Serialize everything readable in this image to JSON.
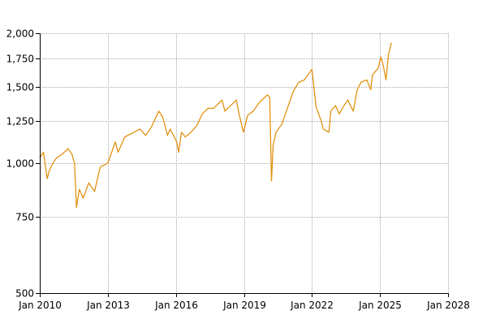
{
  "chart_data": {
    "type": "line",
    "title": "",
    "xlabel": "",
    "ylabel": "",
    "y_scale": "log",
    "ylim": [
      500,
      2000
    ],
    "xlim": [
      "2010-01-01",
      "2028-01-01"
    ],
    "grid": true,
    "legend": "none",
    "x_ticks": [
      {
        "date": "2010-01-01",
        "label": "Jan 2010"
      },
      {
        "date": "2013-01-01",
        "label": "Jan 2013"
      },
      {
        "date": "2016-01-01",
        "label": "Jan 2016"
      },
      {
        "date": "2019-01-01",
        "label": "Jan 2019"
      },
      {
        "date": "2022-01-01",
        "label": "Jan 2022"
      },
      {
        "date": "2025-01-01",
        "label": "Jan 2025"
      },
      {
        "date": "2028-01-01",
        "label": "Jan 2028"
      }
    ],
    "y_ticks": [
      {
        "value": 500,
        "label": "500"
      },
      {
        "value": 750,
        "label": "750"
      },
      {
        "value": 1000,
        "label": "1,000"
      },
      {
        "value": 1250,
        "label": "1,250"
      },
      {
        "value": 1500,
        "label": "1,500"
      },
      {
        "value": 1750,
        "label": "1,750"
      },
      {
        "value": 2000,
        "label": "2,000"
      }
    ],
    "series": [
      {
        "color": "#e08a00",
        "x": [
          "2010-01-01",
          "2010-03-01",
          "2010-05-01",
          "2010-06-01",
          "2010-08-01",
          "2010-10-01",
          "2011-01-01",
          "2011-04-01",
          "2011-06-01",
          "2011-07-15",
          "2011-08-15",
          "2011-10-01",
          "2011-12-01",
          "2012-03-01",
          "2012-06-01",
          "2012-09-01",
          "2013-01-01",
          "2013-05-01",
          "2013-06-15",
          "2013-10-01",
          "2014-03-01",
          "2014-06-01",
          "2014-09-01",
          "2014-12-01",
          "2015-04-01",
          "2015-06-01",
          "2015-08-20",
          "2015-10-01",
          "2016-01-15",
          "2016-02-15",
          "2016-04-01",
          "2016-06-01",
          "2016-09-01",
          "2016-12-01",
          "2017-03-01",
          "2017-06-01",
          "2017-09-01",
          "2018-01-15",
          "2018-03-01",
          "2018-06-01",
          "2018-09-01",
          "2018-10-15",
          "2018-12-24",
          "2019-03-01",
          "2019-06-01",
          "2019-09-01",
          "2020-01-15",
          "2020-02-20",
          "2020-03-20",
          "2020-04-15",
          "2020-06-01",
          "2020-09-01",
          "2020-11-15",
          "2021-01-01",
          "2021-03-01",
          "2021-06-01",
          "2021-09-01",
          "2021-12-31",
          "2022-03-08",
          "2022-06-01",
          "2022-07-01",
          "2022-09-30",
          "2022-11-01",
          "2023-01-15",
          "2023-03-15",
          "2023-06-01",
          "2023-08-01",
          "2023-10-27",
          "2023-12-31",
          "2024-03-01",
          "2024-06-01",
          "2024-08-05",
          "2024-09-01",
          "2024-12-01",
          "2025-01-15",
          "2025-02-15",
          "2025-04-08",
          "2025-05-15",
          "2025-07-01"
        ],
        "y": [
          1030,
          1060,
          920,
          960,
          1000,
          1030,
          1050,
          1080,
          1050,
          1000,
          790,
          870,
          830,
          900,
          860,
          980,
          1000,
          1120,
          1060,
          1150,
          1180,
          1200,
          1160,
          1210,
          1320,
          1280,
          1160,
          1200,
          1120,
          1060,
          1180,
          1150,
          1180,
          1220,
          1300,
          1340,
          1340,
          1400,
          1320,
          1360,
          1400,
          1300,
          1180,
          1290,
          1320,
          1380,
          1440,
          1420,
          910,
          1100,
          1180,
          1230,
          1320,
          1380,
          1460,
          1540,
          1560,
          1650,
          1350,
          1250,
          1200,
          1180,
          1320,
          1360,
          1300,
          1360,
          1400,
          1320,
          1480,
          1540,
          1560,
          1480,
          1600,
          1660,
          1760,
          1700,
          1560,
          1780,
          1900
        ]
      }
    ]
  }
}
